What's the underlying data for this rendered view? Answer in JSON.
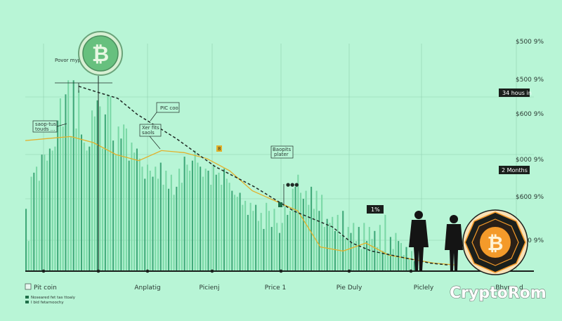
{
  "chart_data": {
    "type": "bar",
    "right_ticks": [
      "$500 9%",
      "$500 9%",
      "$600 9%",
      "$000 9%",
      "$600 9%",
      "$600 9%"
    ],
    "x_labels": [
      "Anplatig",
      "Picienj",
      "Price 1",
      "Pie Duly",
      "Piclely",
      "Bhyres d"
    ],
    "annotations": {
      "peak": "Povor myphe",
      "pic_coo": "PIC coo",
      "left_box": [
        "saop-tus",
        "touds ..."
      ],
      "mid_box": [
        "Xer fits",
        "saols"
      ],
      "right_box": [
        "Baopits",
        "plater"
      ],
      "badge_small": "8",
      "dots": "●●●"
    },
    "labels_right": {
      "hours": "34 hous in",
      "months": "2 Months",
      "percent": "1%"
    },
    "legend": {
      "title": "Pit coin",
      "line1": "Noseared fet tas ttoaly",
      "line2": "I bid fetarnoochy"
    },
    "brand": "CryptoRom",
    "bars": [
      31,
      15,
      47,
      49,
      52,
      45,
      58,
      58,
      55,
      61,
      60,
      62,
      75,
      86,
      72,
      88,
      95,
      67,
      95,
      71,
      90,
      68,
      64,
      60,
      62,
      80,
      77,
      85,
      82,
      61,
      78,
      88,
      87,
      65,
      58,
      72,
      66,
      73,
      71,
      55,
      64,
      59,
      61,
      56,
      52,
      46,
      53,
      50,
      47,
      52,
      46,
      54,
      43,
      50,
      41,
      48,
      38,
      42,
      51,
      44,
      57,
      53,
      50,
      55,
      60,
      54,
      52,
      47,
      51,
      50,
      43,
      53,
      48,
      49,
      43,
      51,
      46,
      44,
      40,
      38,
      37,
      39,
      33,
      35,
      28,
      34,
      30,
      33,
      25,
      29,
      21,
      34,
      30,
      22,
      31,
      24,
      19,
      24,
      32,
      28,
      30,
      41,
      42,
      48,
      39,
      36,
      40,
      33,
      42,
      31,
      40,
      30,
      38,
      22,
      26,
      24,
      27,
      20,
      28,
      18,
      30,
      16,
      22,
      19,
      24,
      15,
      22,
      11,
      24,
      15,
      22,
      16,
      20,
      12,
      23,
      10,
      28,
      9,
      17,
      11,
      19,
      15,
      14,
      8,
      12,
      6,
      10,
      5,
      7,
      2
    ],
    "trend_dashed": [
      92,
      89,
      86,
      78,
      72,
      66,
      59,
      52,
      47,
      42,
      36,
      30,
      26,
      22,
      14,
      10,
      8,
      6,
      4,
      3
    ],
    "trend_yellow": [
      65,
      66,
      67,
      64,
      58,
      55,
      60,
      59,
      56,
      50,
      40,
      35,
      30,
      12,
      10,
      14,
      8,
      6,
      4,
      3
    ]
  },
  "colors": {
    "background": "#b8f5d6",
    "bars": "#3fa878",
    "bars_light": "#7ad8a6",
    "coin_green": "#67c07e",
    "coin_orange": "#f49a2a",
    "yellow": "#e3b02a"
  },
  "icons": [
    "bitcoin-coin-icon",
    "bitcoin-coin-orange-icon",
    "businessman-silhouette-icon"
  ]
}
